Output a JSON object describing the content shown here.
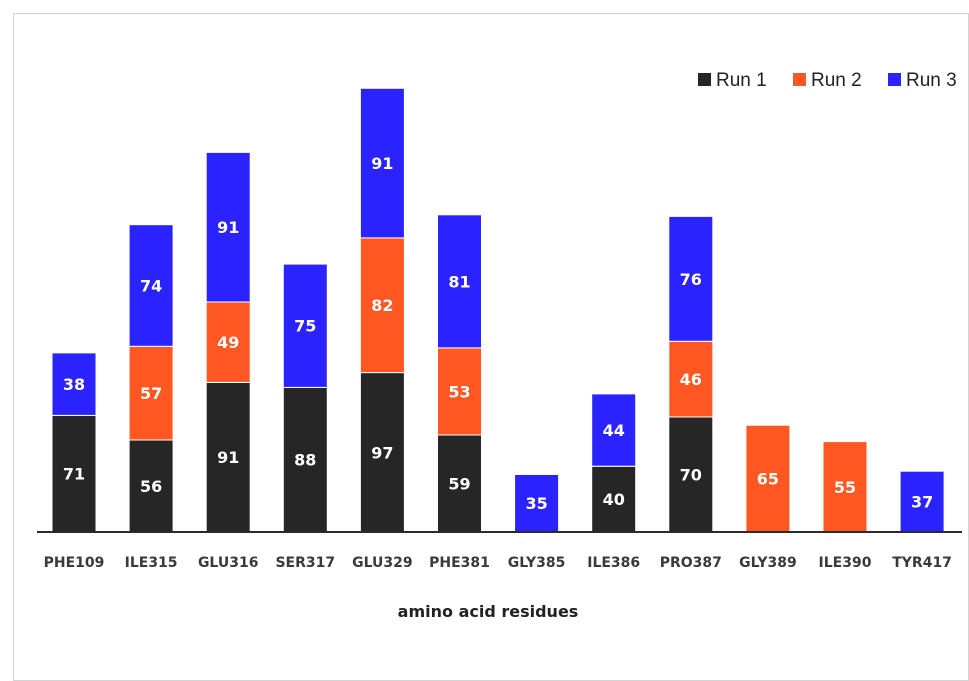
{
  "chart_data": {
    "type": "bar",
    "stacked": true,
    "categories": [
      "PHE109",
      "ILE315",
      "GLU316",
      "SER317",
      "GLU329",
      "PHE381",
      "GLY385",
      "ILE386",
      "PRO387",
      "GLY389",
      "ILE390",
      "TYR417"
    ],
    "series": [
      {
        "name": "Run 1",
        "color": "#262626",
        "values": [
          71,
          56,
          91,
          88,
          97,
          59,
          null,
          40,
          70,
          null,
          null,
          null
        ]
      },
      {
        "name": "Run 2",
        "color": "#ff5722",
        "values": [
          null,
          57,
          49,
          null,
          82,
          53,
          null,
          null,
          46,
          65,
          55,
          null
        ]
      },
      {
        "name": "Run 3",
        "color": "#2a22ff",
        "values": [
          38,
          74,
          91,
          75,
          91,
          81,
          35,
          44,
          76,
          null,
          null,
          37
        ]
      }
    ],
    "title": "",
    "xlabel": "amino acid residues",
    "ylabel": "",
    "ylim": [
      0,
      270
    ],
    "grid": false,
    "data_labels": true,
    "legend_position": "top-right"
  }
}
